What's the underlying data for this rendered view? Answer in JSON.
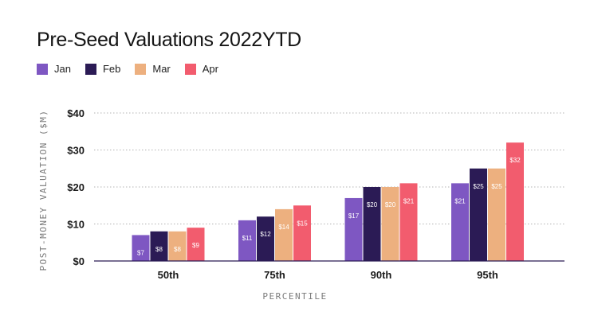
{
  "title": "Pre-Seed Valuations 2022YTD",
  "chart_data": {
    "type": "bar",
    "title": "Pre-Seed Valuations 2022YTD",
    "categories": [
      "50th",
      "75th",
      "90th",
      "95th"
    ],
    "series": [
      {
        "name": "Jan",
        "color": "#7e57c2",
        "values": [
          7,
          11,
          17,
          21
        ],
        "labels": [
          "$7",
          "$11",
          "$17",
          "$21"
        ]
      },
      {
        "name": "Feb",
        "color": "#2b1b55",
        "values": [
          8,
          12,
          20,
          25
        ],
        "labels": [
          "$8",
          "$12",
          "$20",
          "$25"
        ]
      },
      {
        "name": "Mar",
        "color": "#edb07f",
        "values": [
          8,
          14,
          20,
          25
        ],
        "labels": [
          "$8",
          "$14",
          "$20",
          "$25"
        ]
      },
      {
        "name": "Apr",
        "color": "#f25c6e",
        "values": [
          9,
          15,
          21,
          32
        ],
        "labels": [
          "$9",
          "$15",
          "$21",
          "$32"
        ]
      }
    ],
    "xlabel": "PERCENTILE",
    "ylabel": "POST-MONEY VALUATION ($M)",
    "ylim": [
      0,
      40
    ],
    "yticks": [
      0,
      10,
      20,
      30,
      40
    ],
    "ytick_labels": [
      "$0",
      "$10",
      "$20",
      "$30",
      "$40"
    ],
    "grid": true,
    "legend_position": "top-left"
  }
}
